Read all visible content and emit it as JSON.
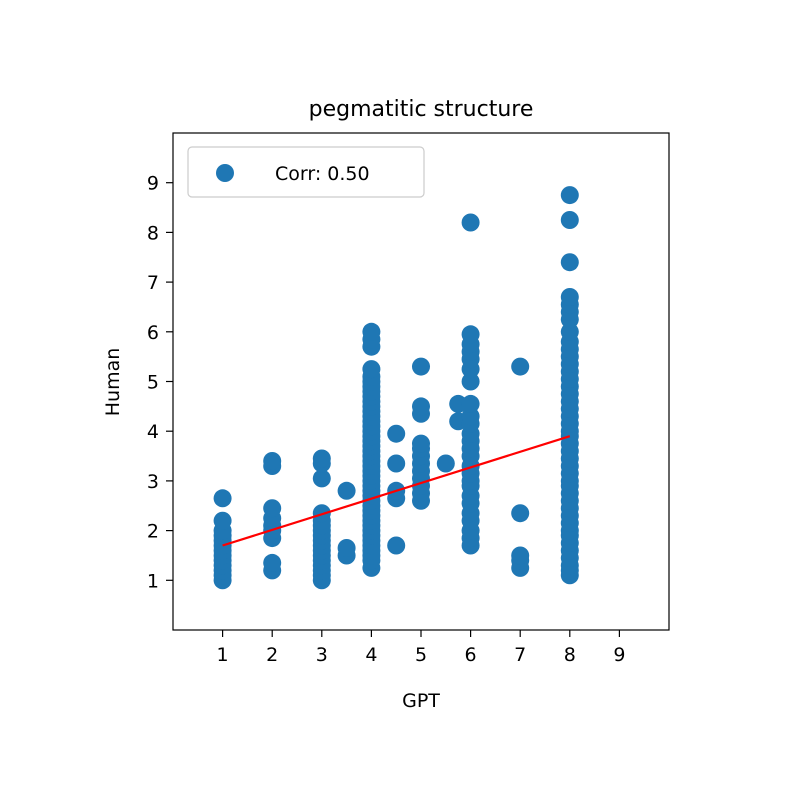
{
  "chart_data": {
    "type": "scatter",
    "title": "pegmatitic structure",
    "xlabel": "GPT",
    "ylabel": "Human",
    "xlim": [
      0,
      10
    ],
    "ylim": [
      0,
      10
    ],
    "xticks": [
      1,
      2,
      3,
      4,
      5,
      6,
      7,
      8,
      9
    ],
    "yticks": [
      1,
      2,
      3,
      4,
      5,
      6,
      7,
      8,
      9
    ],
    "grid": false,
    "legend": {
      "placement": "top-left",
      "label": "Corr: 0.50"
    },
    "colors": {
      "points": "#1f77b4",
      "fit_line": "#ff0000"
    },
    "fit_line": {
      "x": [
        1,
        8
      ],
      "y": [
        1.7,
        3.9
      ]
    },
    "series": [
      {
        "name": "Corr: 0.50",
        "points": [
          [
            1,
            1.0
          ],
          [
            1,
            1.1
          ],
          [
            1,
            1.2
          ],
          [
            1,
            1.3
          ],
          [
            1,
            1.4
          ],
          [
            1,
            1.5
          ],
          [
            1,
            1.6
          ],
          [
            1,
            1.7
          ],
          [
            1,
            1.8
          ],
          [
            1,
            1.9
          ],
          [
            1,
            2.0
          ],
          [
            1,
            2.2
          ],
          [
            1,
            2.65
          ],
          [
            2,
            1.2
          ],
          [
            2,
            1.35
          ],
          [
            2,
            1.85
          ],
          [
            2,
            2.0
          ],
          [
            2,
            2.1
          ],
          [
            2,
            2.25
          ],
          [
            2,
            2.45
          ],
          [
            2,
            3.3
          ],
          [
            2,
            3.4
          ],
          [
            3,
            1.0
          ],
          [
            3,
            1.1
          ],
          [
            3,
            1.2
          ],
          [
            3,
            1.3
          ],
          [
            3,
            1.4
          ],
          [
            3,
            1.5
          ],
          [
            3,
            1.6
          ],
          [
            3,
            1.7
          ],
          [
            3,
            1.8
          ],
          [
            3,
            1.9
          ],
          [
            3,
            2.0
          ],
          [
            3,
            2.1
          ],
          [
            3,
            2.2
          ],
          [
            3,
            2.35
          ],
          [
            3,
            3.05
          ],
          [
            3,
            3.35
          ],
          [
            3,
            3.45
          ],
          [
            3.5,
            1.5
          ],
          [
            3.5,
            1.65
          ],
          [
            3.5,
            2.8
          ],
          [
            4,
            1.25
          ],
          [
            4,
            1.4
          ],
          [
            4,
            1.5
          ],
          [
            4,
            1.6
          ],
          [
            4,
            1.7
          ],
          [
            4,
            1.8
          ],
          [
            4,
            1.9
          ],
          [
            4,
            2.0
          ],
          [
            4,
            2.1
          ],
          [
            4,
            2.2
          ],
          [
            4,
            2.3
          ],
          [
            4,
            2.4
          ],
          [
            4,
            2.5
          ],
          [
            4,
            2.6
          ],
          [
            4,
            2.7
          ],
          [
            4,
            2.8
          ],
          [
            4,
            2.9
          ],
          [
            4,
            3.0
          ],
          [
            4,
            3.1
          ],
          [
            4,
            3.2
          ],
          [
            4,
            3.3
          ],
          [
            4,
            3.4
          ],
          [
            4,
            3.5
          ],
          [
            4,
            3.6
          ],
          [
            4,
            3.7
          ],
          [
            4,
            3.8
          ],
          [
            4,
            3.9
          ],
          [
            4,
            4.0
          ],
          [
            4,
            4.1
          ],
          [
            4,
            4.2
          ],
          [
            4,
            4.3
          ],
          [
            4,
            4.4
          ],
          [
            4,
            4.5
          ],
          [
            4,
            4.6
          ],
          [
            4,
            4.7
          ],
          [
            4,
            4.8
          ],
          [
            4,
            4.9
          ],
          [
            4,
            5.0
          ],
          [
            4,
            5.1
          ],
          [
            4,
            5.25
          ],
          [
            4,
            5.7
          ],
          [
            4,
            5.85
          ],
          [
            4,
            6.0
          ],
          [
            4.5,
            1.7
          ],
          [
            4.5,
            2.65
          ],
          [
            4.5,
            2.8
          ],
          [
            4.5,
            3.35
          ],
          [
            4.5,
            3.95
          ],
          [
            5,
            2.6
          ],
          [
            5,
            2.75
          ],
          [
            5,
            2.9
          ],
          [
            5,
            3.05
          ],
          [
            5,
            3.2
          ],
          [
            5,
            3.35
          ],
          [
            5,
            3.5
          ],
          [
            5,
            3.65
          ],
          [
            5,
            3.75
          ],
          [
            5,
            4.35
          ],
          [
            5,
            4.5
          ],
          [
            5,
            5.3
          ],
          [
            5.5,
            3.35
          ],
          [
            5.75,
            4.2
          ],
          [
            5.75,
            4.55
          ],
          [
            6,
            1.7
          ],
          [
            6,
            1.85
          ],
          [
            6,
            2.0
          ],
          [
            6,
            2.2
          ],
          [
            6,
            2.35
          ],
          [
            6,
            2.55
          ],
          [
            6,
            2.7
          ],
          [
            6,
            2.9
          ],
          [
            6,
            3.0
          ],
          [
            6,
            3.15
          ],
          [
            6,
            3.3
          ],
          [
            6,
            3.5
          ],
          [
            6,
            3.65
          ],
          [
            6,
            3.8
          ],
          [
            6,
            3.95
          ],
          [
            6,
            4.15
          ],
          [
            6,
            4.3
          ],
          [
            6,
            4.55
          ],
          [
            6,
            5.0
          ],
          [
            6,
            5.25
          ],
          [
            6,
            5.45
          ],
          [
            6,
            5.6
          ],
          [
            6,
            5.75
          ],
          [
            6,
            5.95
          ],
          [
            6,
            8.2
          ],
          [
            7,
            1.25
          ],
          [
            7,
            1.4
          ],
          [
            7,
            1.5
          ],
          [
            7,
            2.35
          ],
          [
            7,
            5.3
          ],
          [
            8,
            1.1
          ],
          [
            8,
            1.2
          ],
          [
            8,
            1.3
          ],
          [
            8,
            1.45
          ],
          [
            8,
            1.6
          ],
          [
            8,
            1.75
          ],
          [
            8,
            1.9
          ],
          [
            8,
            2.0
          ],
          [
            8,
            2.15
          ],
          [
            8,
            2.3
          ],
          [
            8,
            2.45
          ],
          [
            8,
            2.6
          ],
          [
            8,
            2.75
          ],
          [
            8,
            2.9
          ],
          [
            8,
            3.0
          ],
          [
            8,
            3.15
          ],
          [
            8,
            3.3
          ],
          [
            8,
            3.45
          ],
          [
            8,
            3.6
          ],
          [
            8,
            3.75
          ],
          [
            8,
            3.9
          ],
          [
            8,
            4.0
          ],
          [
            8,
            4.15
          ],
          [
            8,
            4.3
          ],
          [
            8,
            4.45
          ],
          [
            8,
            4.6
          ],
          [
            8,
            4.75
          ],
          [
            8,
            4.9
          ],
          [
            8,
            5.05
          ],
          [
            8,
            5.2
          ],
          [
            8,
            5.35
          ],
          [
            8,
            5.5
          ],
          [
            8,
            5.65
          ],
          [
            8,
            5.8
          ],
          [
            8,
            6.0
          ],
          [
            8,
            6.25
          ],
          [
            8,
            6.4
          ],
          [
            8,
            6.55
          ],
          [
            8,
            6.7
          ],
          [
            8,
            7.4
          ],
          [
            8,
            8.25
          ],
          [
            8,
            8.75
          ]
        ]
      }
    ]
  }
}
